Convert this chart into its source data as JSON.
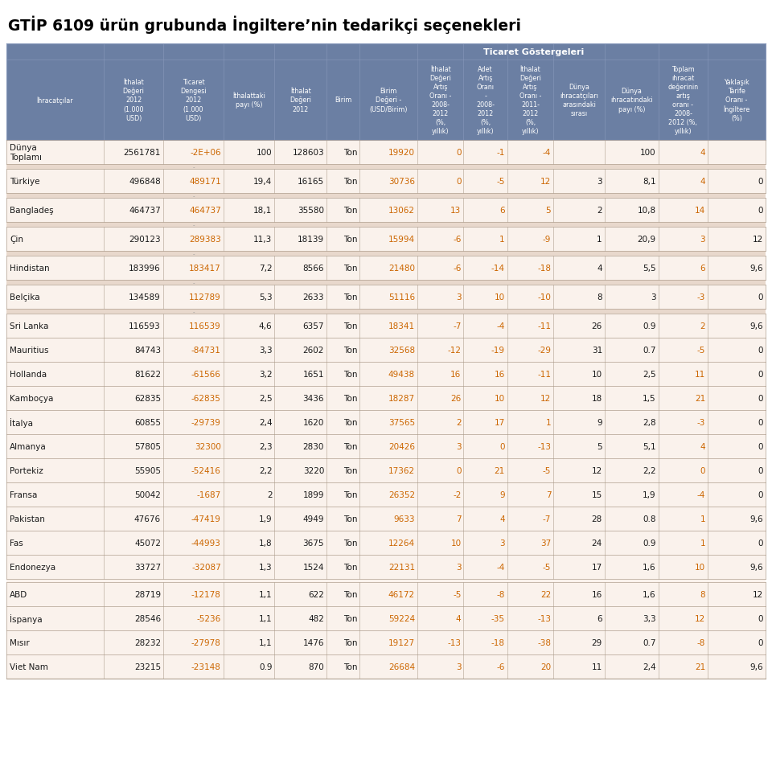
{
  "title": "GTİP 6109 ürün grubunda İngiltere’nin tedarikçi seçenekleri",
  "trade_label": "Ticaret Göstergeleri",
  "col_headers": [
    "İhracatçılar",
    "İthalat\nDeğeri\n2012\n(1.000\nUSD)",
    "Ticaret\nDengesi\n2012\n(1.000\nUSD)",
    "İthalattaki\npayı (%)",
    "İthalat\nDeğeri\n2012",
    "Birim",
    "Birim\nDeğeri -\n(USD/Birim)",
    "İthalat\nDeğeri\nArtış\nOranı -\n2008-\n2012\n(%,\nyıllık)",
    "Adet\nArtış\nOranı\n-\n2008-\n2012\n(%,\nyıllık)",
    "İthalat\nDeğeri\nArtış\nOranı -\n2011-\n2012\n(%,\nyıllık)",
    "Dünya\nıhracatçıları\narasındaki\nsırası",
    "Dünya\nıhracatındaki\npayı (%)",
    "Toplam\nıhracat\ndeğerinin\nartış\noranı -\n2008-\n2012 (%,\nyıllık)",
    "Yaklaşık\nTarife\nOranı -\nİngiltere\n(%)"
  ],
  "rows": [
    [
      "Dünya\nTopla mı",
      "2561781",
      "-2E+06",
      "100",
      "128603",
      "Ton",
      "19920",
      "0",
      "-1",
      "-4",
      "",
      "100",
      "4",
      ""
    ],
    [
      "-",
      "",
      "",
      "",
      "",
      "",
      "",
      "",
      "",
      "",
      "",
      "",
      "",
      ""
    ],
    [
      "Türkiye",
      "496848",
      "489171",
      "19,4",
      "16165",
      "Ton",
      "30736",
      "0",
      "-5",
      "12",
      "3",
      "8,1",
      "4",
      "0"
    ],
    [
      "-",
      "",
      "",
      "",
      "",
      "",
      "",
      "",
      "",
      "",
      "",
      "",
      "",
      ""
    ],
    [
      "Bangladeş",
      "464737",
      "464737",
      "18,1",
      "35580",
      "Ton",
      "13062",
      "13",
      "6",
      "5",
      "2",
      "10,8",
      "14",
      "0"
    ],
    [
      "-",
      "",
      "",
      "",
      "",
      "",
      "",
      "",
      "",
      "",
      "",
      "",
      "",
      ""
    ],
    [
      "Çin",
      "290123",
      "289383",
      "11,3",
      "18139",
      "Ton",
      "15994",
      "-6",
      "1",
      "-9",
      "1",
      "20,9",
      "3",
      "12"
    ],
    [
      "-",
      "",
      "",
      "",
      "",
      "",
      "",
      "",
      "",
      "",
      "",
      "",
      "",
      ""
    ],
    [
      "Hindistan",
      "183996",
      "183417",
      "7,2",
      "8566",
      "Ton",
      "21480",
      "-6",
      "-14",
      "-18",
      "4",
      "5,5",
      "6",
      "9,6"
    ],
    [
      "-",
      "",
      "",
      "",
      "",
      "",
      "",
      "",
      "",
      "",
      "",
      "",
      "",
      ""
    ],
    [
      "Belçika",
      "134589",
      "112789",
      "5,3",
      "2633",
      "Ton",
      "51116",
      "3",
      "10",
      "-10",
      "8",
      "3",
      "-3",
      "0"
    ],
    [
      "-",
      "",
      "",
      "",
      "",
      "",
      "",
      "",
      "",
      "",
      "",
      "",
      "",
      ""
    ],
    [
      "Sri Lanka",
      "116593",
      "116539",
      "4,6",
      "6357",
      "Ton",
      "18341",
      "-7",
      "-4",
      "-11",
      "26",
      "0.9",
      "2",
      "9,6"
    ],
    [
      "Mauritius",
      "84743",
      "-84731",
      "3,3",
      "2602",
      "Ton",
      "32568",
      "-12",
      "-19",
      "-29",
      "31",
      "0.7",
      "-5",
      "0"
    ],
    [
      "Hollanda",
      "81622",
      "-61566",
      "3,2",
      "1651",
      "Ton",
      "49438",
      "16",
      "16",
      "-11",
      "10",
      "2,5",
      "11",
      "0"
    ],
    [
      "Kamboçya",
      "62835",
      "-62835",
      "2,5",
      "3436",
      "Ton",
      "18287",
      "26",
      "10",
      "12",
      "18",
      "1,5",
      "21",
      "0"
    ],
    [
      "İtalya",
      "60855",
      "-29739",
      "2,4",
      "1620",
      "Ton",
      "37565",
      "2",
      "17",
      "1",
      "9",
      "2,8",
      "-3",
      "0"
    ],
    [
      "Almanya",
      "57805",
      "32300",
      "2,3",
      "2830",
      "Ton",
      "20426",
      "3",
      "0",
      "-13",
      "5",
      "5,1",
      "4",
      "0"
    ],
    [
      "Portekiz",
      "55905",
      "-52416",
      "2,2",
      "3220",
      "Ton",
      "17362",
      "0",
      "21",
      "-5",
      "12",
      "2,2",
      "0",
      "0"
    ],
    [
      "Fransa",
      "50042",
      "-1687",
      "2",
      "1899",
      "Ton",
      "26352",
      "-2",
      "9",
      "7",
      "15",
      "1,9",
      "-4",
      "0"
    ],
    [
      "Pakistan",
      "47676",
      "-47419",
      "1,9",
      "4949",
      "Ton",
      "9633",
      "7",
      "4",
      "-7",
      "28",
      "0.8",
      "1",
      "9,6"
    ],
    [
      "Fas",
      "45072",
      "-44993",
      "1,8",
      "3675",
      "Ton",
      "12264",
      "10",
      "3",
      "37",
      "24",
      "0.9",
      "1",
      "0"
    ],
    [
      "Endonezya",
      "33727",
      "-32087",
      "1,3",
      "1524",
      "Ton",
      "22131",
      "3",
      "-4",
      "-5",
      "17",
      "1,6",
      "10",
      "9,6"
    ],
    [
      "",
      "",
      "",
      "",
      "",
      "",
      "",
      "",
      "",
      "",
      "",
      "",
      "",
      ""
    ],
    [
      "ABD",
      "28719",
      "-12178",
      "1,1",
      "622",
      "Ton",
      "46172",
      "-5",
      "-8",
      "22",
      "16",
      "1,6",
      "8",
      "12"
    ],
    [
      "İspanya",
      "28546",
      "-5236",
      "1,1",
      "482",
      "Ton",
      "59224",
      "4",
      "-35",
      "-13",
      "6",
      "3,3",
      "12",
      "0"
    ],
    [
      "Mısır",
      "28232",
      "-27978",
      "1,1",
      "1476",
      "Ton",
      "19127",
      "-13",
      "-18",
      "-38",
      "29",
      "0.7",
      "-8",
      "0"
    ],
    [
      "Viet Nam",
      "23215",
      "-23148",
      "0.9",
      "870",
      "Ton",
      "26684",
      "3",
      "-6",
      "20",
      "11",
      "2,4",
      "21",
      "9,6"
    ]
  ],
  "header_bg": "#6B7FA3",
  "header_text": "#FFFFFF",
  "row_bg": "#FAF2EC",
  "sep_bg": "#E8D8CC",
  "orange_color": "#CC6600",
  "black_color": "#1A1A1A",
  "title_color": "#000000",
  "border_color": "#B0A090"
}
